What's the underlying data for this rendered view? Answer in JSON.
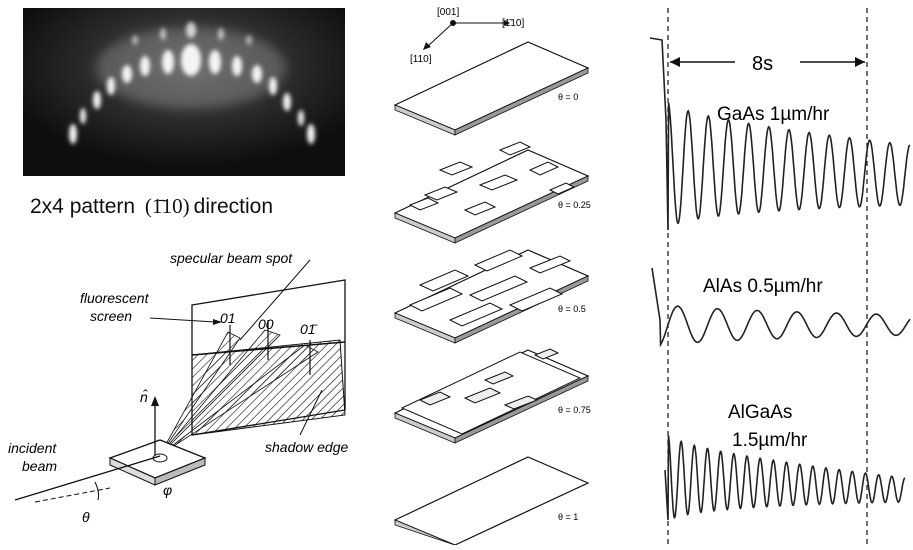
{
  "rheed_pattern": {
    "caption_pre": "2x4 pattern",
    "caption_dir": "(1̄10)",
    "caption_post": "direction"
  },
  "geometry_diagram": {
    "specular_label": "specular beam spot",
    "screen_label_1": "fluorescent",
    "screen_label_2": "screen",
    "spot_01": "01",
    "spot_00": "00",
    "spot_01bar": "01̄",
    "normal_label": "n̂",
    "incident_1": "incident",
    "incident_2": "beam",
    "shadow_label": "shadow edge",
    "phi_label": "φ",
    "theta_label": "θ"
  },
  "growth_stages": {
    "axis_001": "[001]",
    "axis_1bar10": "[1̄10]",
    "axis_110": "[110]",
    "stages": [
      {
        "coverage": "θ = 0"
      },
      {
        "coverage": "θ = 0.25"
      },
      {
        "coverage": "θ = 0.5"
      },
      {
        "coverage": "θ = 0.75"
      },
      {
        "coverage": "θ = 1"
      }
    ]
  },
  "oscillations": {
    "period_label": "8s",
    "traces": [
      {
        "material": "GaAs 1µm/hr"
      },
      {
        "material": "AlAs 0.5µm/hr"
      },
      {
        "material_1": "AlGaAs",
        "material_2": "1.5µm/hr"
      }
    ]
  }
}
